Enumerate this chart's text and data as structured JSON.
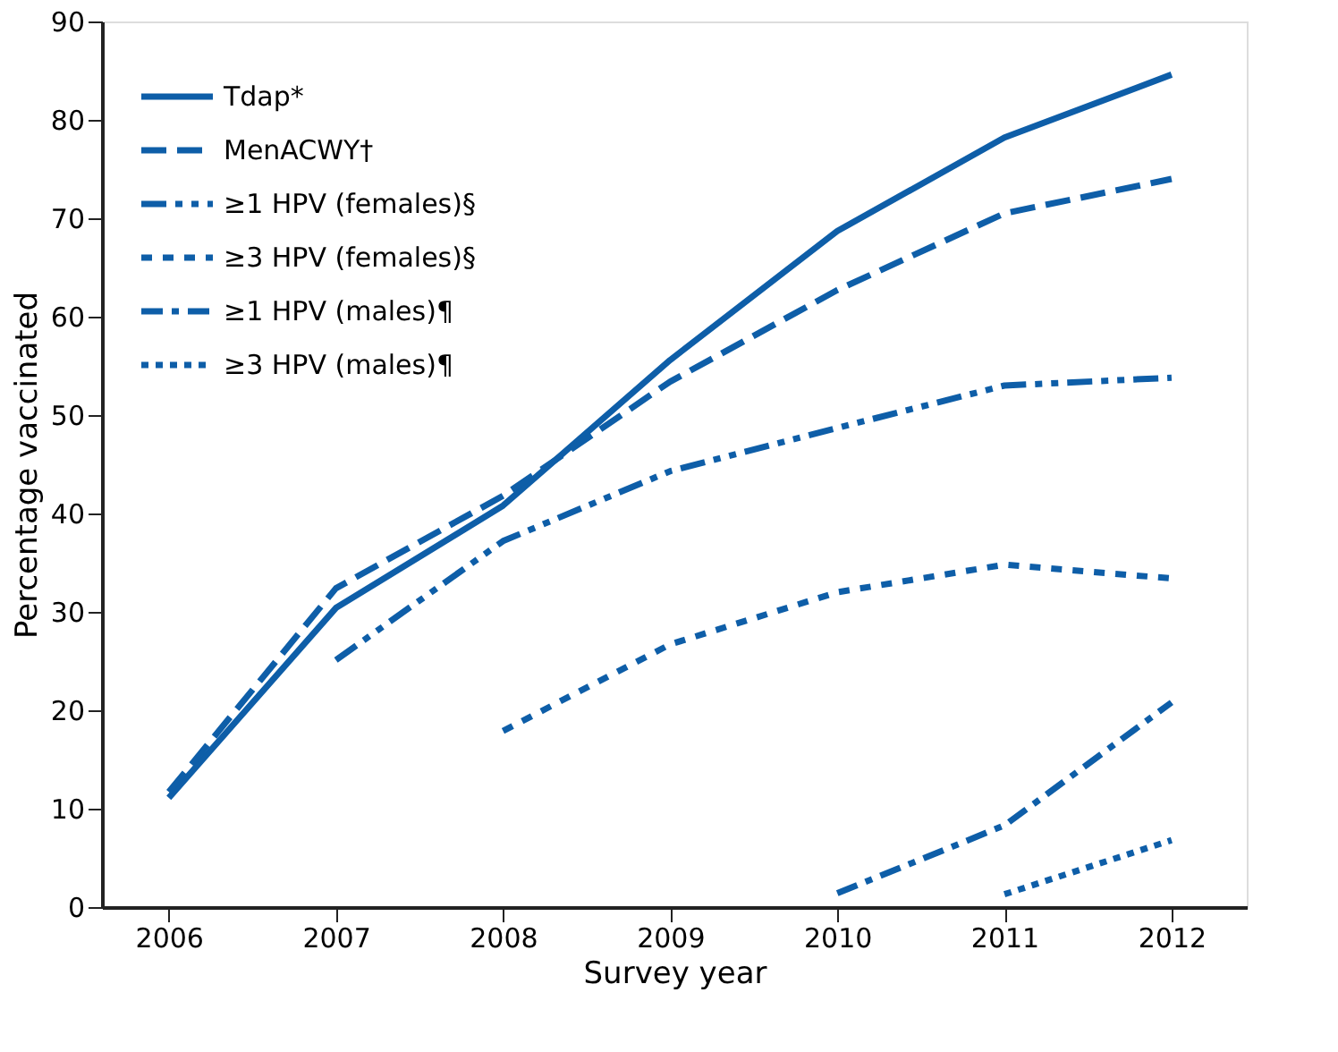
{
  "chart_data": {
    "type": "line",
    "xlabel": "Survey year",
    "ylabel": "Percentage vaccinated",
    "xlim": [
      2005.6,
      2012.45
    ],
    "xticks": [
      2006,
      2007,
      2008,
      2009,
      2010,
      2011,
      2012
    ],
    "ylim": [
      0,
      90
    ],
    "yticks": [
      0,
      10,
      20,
      30,
      40,
      50,
      60,
      70,
      80,
      90
    ],
    "grid": false,
    "legend": "top left",
    "series": [
      {
        "name": "Tdap*",
        "color": "#0e5ea8",
        "line_style": "solid",
        "x": [
          2006,
          2007,
          2008,
          2009,
          2010,
          2011,
          2012
        ],
        "values": [
          11.1,
          30.4,
          40.8,
          55.6,
          68.7,
          78.2,
          84.6
        ]
      },
      {
        "name": "MenACWY†",
        "color": "#0e5ea8",
        "line_style": "dashed",
        "x": [
          2006,
          2007,
          2008,
          2009,
          2010,
          2011,
          2012
        ],
        "values": [
          11.7,
          32.4,
          41.8,
          53.4,
          62.7,
          70.5,
          74.0
        ]
      },
      {
        "name": "≥1 HPV (females)§",
        "color": "#0e5ea8",
        "line_style": "dashdotdot",
        "x": [
          2007,
          2008,
          2009,
          2010,
          2011,
          2012
        ],
        "values": [
          25.1,
          37.2,
          44.3,
          48.7,
          53.0,
          53.8
        ]
      },
      {
        "name": "≥3 HPV (females)§",
        "color": "#0e5ea8",
        "line_style": "dotted",
        "x": [
          2008,
          2009,
          2010,
          2011,
          2012
        ],
        "values": [
          17.9,
          26.7,
          32.0,
          34.8,
          33.4
        ]
      },
      {
        "name": "≥1 HPV (males)¶",
        "color": "#0e5ea8",
        "line_style": "dashdot",
        "x": [
          2010,
          2011,
          2012
        ],
        "values": [
          1.4,
          8.3,
          20.8
        ]
      },
      {
        "name": "≥3 HPV (males)¶",
        "color": "#0e5ea8",
        "line_style": "finedotted",
        "x": [
          2011,
          2012
        ],
        "values": [
          1.3,
          6.8
        ]
      }
    ]
  }
}
